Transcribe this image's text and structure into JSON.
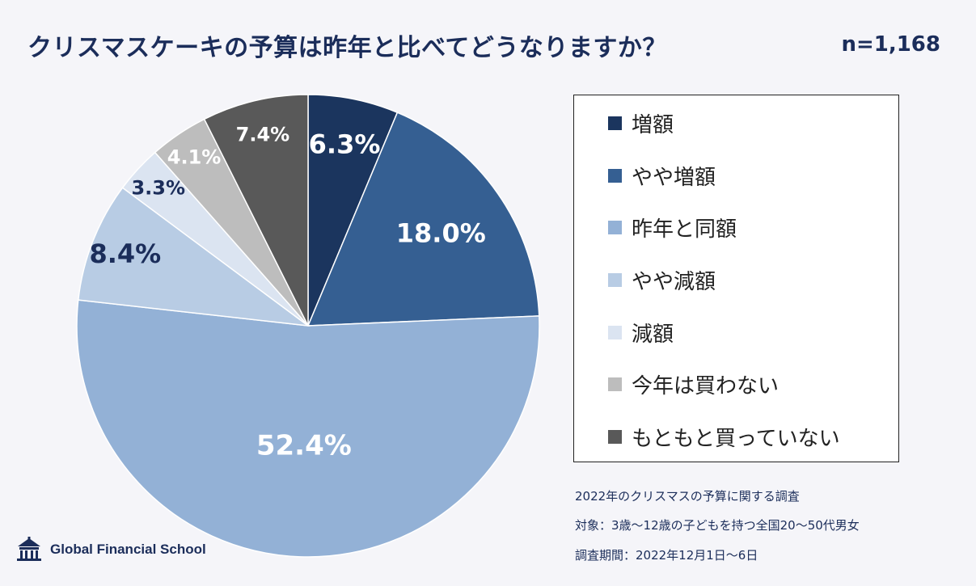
{
  "header": {
    "title": "クリスマスケーキの予算は昨年と比べてどうなりますか？",
    "sample_size": "n=1,168"
  },
  "chart_data": {
    "type": "pie",
    "categories": [
      "増額",
      "やや増額",
      "昨年と同額",
      "やや減額",
      "減額",
      "今年は買わない",
      "もともと買っていない"
    ],
    "values": [
      6.3,
      18.0,
      52.4,
      8.4,
      3.3,
      4.1,
      7.4
    ],
    "value_labels": [
      "6.3%",
      "18.0%",
      "52.4%",
      "8.4%",
      "3.3%",
      "4.1%",
      "7.4%"
    ],
    "colors": [
      "#1b355e",
      "#355f92",
      "#93b1d6",
      "#b8cce4",
      "#dbe4f1",
      "#bdbdbd",
      "#595959"
    ],
    "label_colors": [
      "#ffffff",
      "#ffffff",
      "#ffffff",
      "#1b2d5a",
      "#1b2d5a",
      "#ffffff",
      "#ffffff"
    ],
    "start_angle": "12 o'clock, clockwise",
    "legend_position": "right"
  },
  "notes": {
    "survey": "2022年のクリスマスの予算に関する調査",
    "target": "対象：3歳～12歳の子どもを持つ全国20～50代男女",
    "period": "調査期間：2022年12月1日～6日"
  },
  "logo": {
    "name": "Global Financial School",
    "icon": "school-building-icon"
  }
}
